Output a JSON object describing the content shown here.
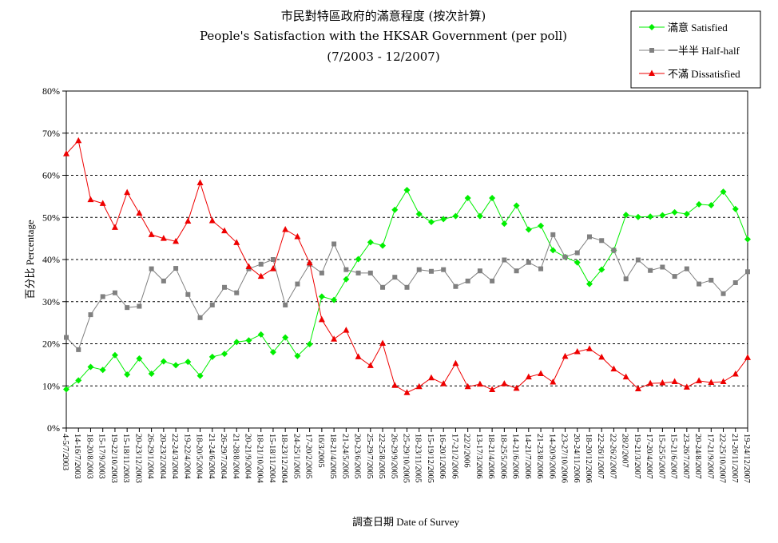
{
  "chart_data": {
    "type": "line",
    "title_zh": "市民對特區政府的滿意程度 (按次計算)",
    "title_en": "People's Satisfaction with the HKSAR Government (per poll)",
    "subtitle": "(7/2003 - 12/2007)",
    "ylabel": "百分比 Percentage",
    "xlabel": "調查日期 Date of Survey",
    "y_unit": "%",
    "ylim": [
      0,
      80
    ],
    "y_ticks": [
      0,
      10,
      20,
      30,
      40,
      50,
      60,
      70,
      80
    ],
    "grid": true,
    "legend_position": "top-right",
    "categories": [
      "4-5/7/2003",
      "14-16/7/2003",
      "18-20/8/2003",
      "15-17/9/2003",
      "19-22/10/2003",
      "15-18/11/2003",
      "20-23/12/2003",
      "26-29/1/2004",
      "20-23/2/2004",
      "22-24/3/2004",
      "19-22/4/2004",
      "18-20/5/2004",
      "21-24/6/2004",
      "26-29/7/2004",
      "21-28/8/2004",
      "20-21/9/2004",
      "18-21/10/2004",
      "15-18/11/2004",
      "18-23/12/2004",
      "24-25/1/2005",
      "17-20/2/2005",
      "16/3/2005",
      "18-21/4/2005",
      "21-24/5/2005",
      "20-23/6/2005",
      "25-29/7/2005",
      "22-25/8/2005",
      "26-29/9/2005",
      "25-29/10/2005",
      "18-23/11/2005",
      "15-19/12/2005",
      "16-20/1/2006",
      "17-21/2/2006",
      "22/2/2006",
      "13-17/3/2006",
      "18-21/4/2006",
      "18-25/5/2006",
      "14-21/6/2006",
      "14-21/7/2006",
      "21-23/8/2006",
      "14-20/9/2006",
      "23-27/10/2006",
      "20-24/11/2006",
      "18-20/12/2006",
      "22-26/1/2007",
      "22-26/2/2007",
      "28/2/2007",
      "19-21/3/2007",
      "17-20/4/2007",
      "15-25/5/2007",
      "15-21/6/2007",
      "23-26/7/2007",
      "20-24/8/2007",
      "17-21/9/2007",
      "22-25/10/2007",
      "21-26/11/2007",
      "19-24/12/2007"
    ],
    "series": [
      {
        "name": "滿意 Satisfied",
        "color": "#00ee00",
        "marker": "diamond",
        "values": [
          9.2,
          11.3,
          14.5,
          13.8,
          17.3,
          12.7,
          16.5,
          12.9,
          15.8,
          14.9,
          15.7,
          12.4,
          16.9,
          17.6,
          20.4,
          20.8,
          22.2,
          18.0,
          21.5,
          17.1,
          19.9,
          31.2,
          30.4,
          35.3,
          40.1,
          44.1,
          43.3,
          51.8,
          56.5,
          50.8,
          48.9,
          49.6,
          50.3,
          54.6,
          50.3,
          54.6,
          48.5,
          52.8,
          47.1,
          48.0,
          42.2,
          40.6,
          39.3,
          34.2,
          37.6,
          42.2,
          50.6,
          50.1,
          50.2,
          50.5,
          51.2,
          50.8,
          53.1,
          52.9,
          56.1,
          52.0,
          44.8
        ]
      },
      {
        "name": "一半半 Half-half",
        "color": "#808080",
        "marker": "square",
        "values": [
          21.5,
          18.6,
          26.9,
          31.2,
          32.1,
          28.6,
          28.9,
          37.8,
          34.9,
          37.9,
          31.7,
          26.2,
          29.2,
          33.4,
          32.1,
          37.8,
          38.9,
          40.0,
          29.2,
          34.2,
          38.9,
          36.8,
          43.7,
          37.6,
          36.8,
          36.8,
          33.4,
          35.8,
          33.4,
          37.6,
          37.2,
          37.6,
          33.6,
          34.9,
          37.3,
          34.9,
          39.9,
          37.3,
          39.3,
          37.8,
          45.9,
          40.6,
          41.6,
          45.4,
          44.5,
          42.2,
          35.4,
          39.9,
          37.4,
          38.2,
          36.0,
          37.8,
          34.2,
          35.1,
          31.9,
          34.5,
          37.1
        ]
      },
      {
        "name": "不滿 Dissatisfied",
        "color": "#ee0000",
        "marker": "triangle",
        "values": [
          65.1,
          68.2,
          54.2,
          53.3,
          47.6,
          55.9,
          51.0,
          45.9,
          45.0,
          44.3,
          49.1,
          58.2,
          49.2,
          46.8,
          44.0,
          38.3,
          36.0,
          37.8,
          47.1,
          45.4,
          39.2,
          25.7,
          21.1,
          23.2,
          16.9,
          14.8,
          20.1,
          10.1,
          8.4,
          9.8,
          11.9,
          10.5,
          15.3,
          9.8,
          10.4,
          9.1,
          10.5,
          9.4,
          12.1,
          12.9,
          10.9,
          17.0,
          18.1,
          18.8,
          16.8,
          14.0,
          12.1,
          9.3,
          10.6,
          10.7,
          11.0,
          9.7,
          11.2,
          10.8,
          11.0,
          12.8,
          16.7
        ]
      }
    ]
  }
}
